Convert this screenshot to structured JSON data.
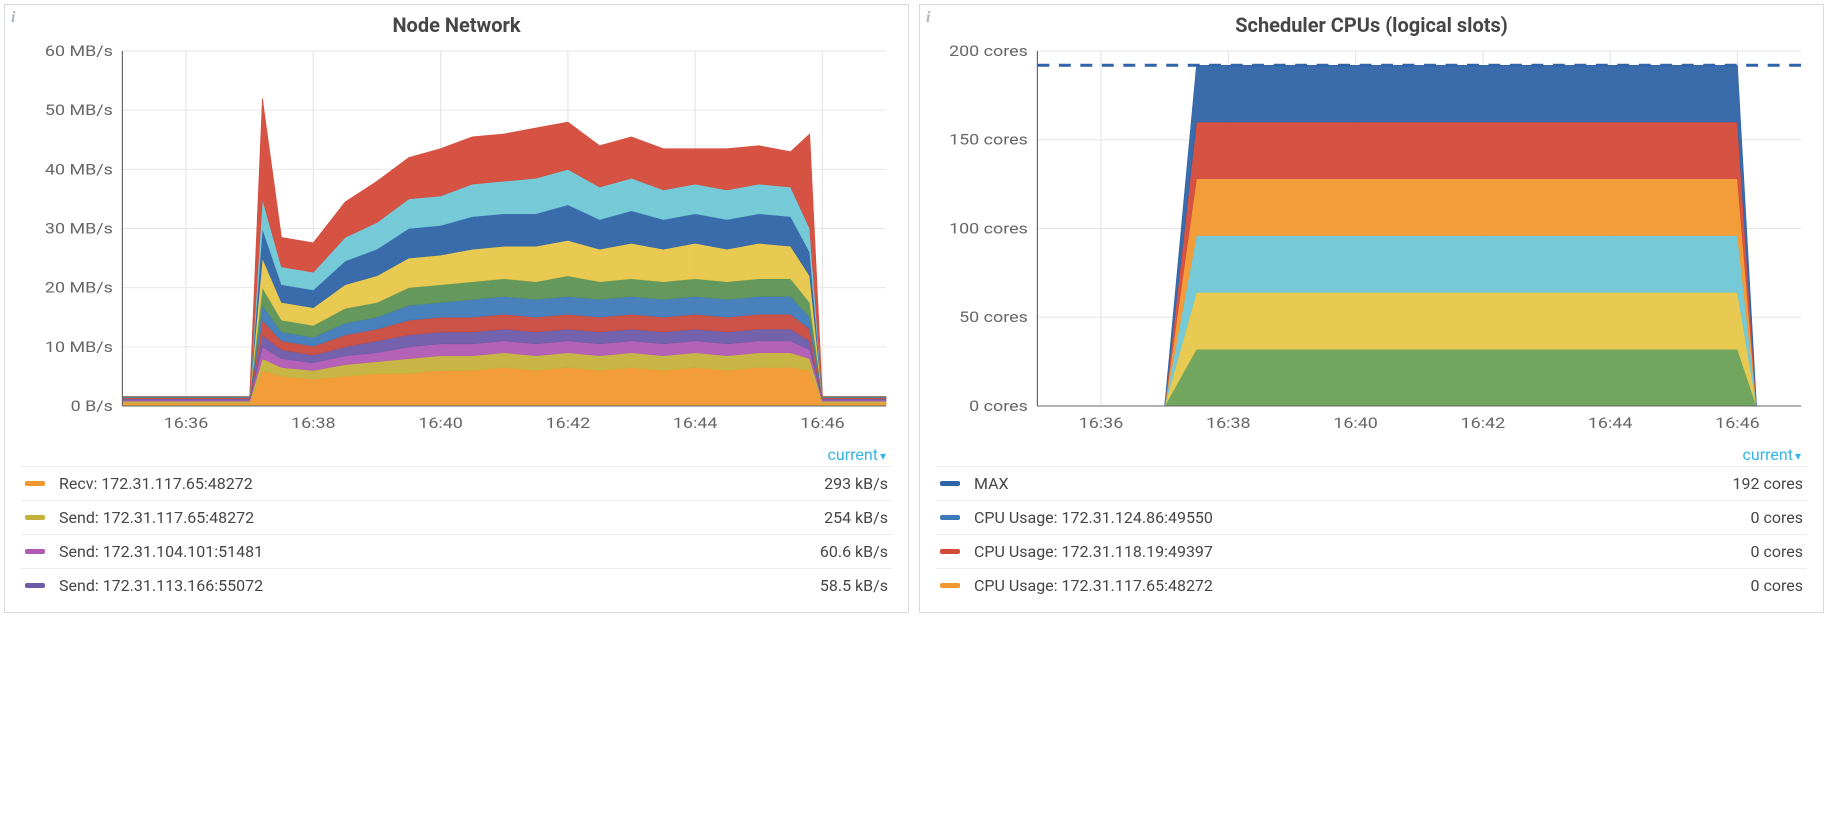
{
  "panels": [
    {
      "id": "node-network",
      "title": "Node Network",
      "legend_toggle": "current",
      "chart": {
        "type": "area-stacked",
        "background_color": "#ffffff",
        "grid_color": "#e6e6e6",
        "axis_color": "#666666",
        "label_fontsize": 15,
        "x_ticks": [
          "16:36",
          "16:38",
          "16:40",
          "16:42",
          "16:44",
          "16:46"
        ],
        "x_domain": [
          0,
          12
        ],
        "y_ticks": [
          "0 B/s",
          "10 MB/s",
          "20 MB/s",
          "30 MB/s",
          "40 MB/s",
          "50 MB/s",
          "60 MB/s"
        ],
        "y_domain": [
          0,
          60
        ],
        "x_samples": [
          0,
          1,
          2,
          2.2,
          2.5,
          3,
          3.5,
          4,
          4.5,
          5,
          5.5,
          6,
          6.5,
          7,
          7.5,
          8,
          8.5,
          9,
          9.5,
          10,
          10.5,
          10.8,
          11,
          12
        ],
        "series": [
          {
            "name": "s1",
            "color": "#f2972f",
            "values": [
              0.5,
              0.5,
              0.5,
              6,
              5,
              4.5,
              5,
              5.5,
              5.5,
              6,
              6,
              6.5,
              6,
              6.5,
              6,
              6.5,
              6,
              6.5,
              6,
              6.5,
              6.5,
              6,
              0.5,
              0.5
            ]
          },
          {
            "name": "s2",
            "color": "#c4b13b",
            "values": [
              0.3,
              0.3,
              0.3,
              2,
              1.5,
              1.5,
              2,
              2,
              2.5,
              2.5,
              2.5,
              2.5,
              2.5,
              2.5,
              2.5,
              2.5,
              2.5,
              2.5,
              2.5,
              2.5,
              2.5,
              2,
              0.3,
              0.3
            ]
          },
          {
            "name": "s3",
            "color": "#af5ab3",
            "values": [
              0.2,
              0.2,
              0.2,
              2,
              1.5,
              1.3,
              1.5,
              1.5,
              2,
              2,
              2,
              2,
              2,
              2,
              2,
              2,
              2,
              2,
              2,
              2,
              2,
              1.5,
              0.2,
              0.2
            ]
          },
          {
            "name": "s4",
            "color": "#6d5aa8",
            "values": [
              0.2,
              0.2,
              0.2,
              2,
              1.5,
              1.3,
              1.5,
              2,
              2,
              2,
              2,
              2,
              2,
              2,
              2,
              2,
              2,
              2,
              2,
              2,
              2,
              1.5,
              0.2,
              0.2
            ]
          },
          {
            "name": "s5",
            "color": "#c94a3e",
            "values": [
              0.2,
              0.2,
              0.2,
              2.5,
              1.5,
              1.5,
              2,
              2,
              2.5,
              2.5,
              2.5,
              2.5,
              2.5,
              2.5,
              2.5,
              2.5,
              2.5,
              2.5,
              2.5,
              2.5,
              2.5,
              2,
              0.2,
              0.2
            ]
          },
          {
            "name": "s6",
            "color": "#3f7ab8",
            "values": [
              0.1,
              0.1,
              0.1,
              2.5,
              1.5,
              1.5,
              2,
              2,
              2.5,
              2.5,
              3,
              3,
              3,
              3,
              3,
              3,
              3,
              3,
              3,
              3,
              3,
              2,
              0.1,
              0.1
            ]
          },
          {
            "name": "s7",
            "color": "#5c9253",
            "values": [
              0.1,
              0.1,
              0.1,
              3,
              2,
              2,
              2.5,
              2.5,
              3,
              3,
              3,
              3,
              3,
              3.5,
              3,
              3,
              3,
              3,
              3,
              3,
              3,
              2.5,
              0.1,
              0.1
            ]
          },
          {
            "name": "s8",
            "color": "#e7c648",
            "values": [
              0,
              0,
              0,
              5,
              3,
              3,
              4,
              4.5,
              5,
              5,
              5.5,
              5.5,
              6,
              6,
              5.5,
              6,
              5.5,
              6,
              5.5,
              6,
              5.5,
              4.5,
              0,
              0
            ]
          },
          {
            "name": "s9",
            "color": "#2f64a8",
            "values": [
              0,
              0,
              0,
              5,
              3,
              3,
              4,
              4.5,
              5,
              5,
              5.5,
              5.5,
              5.5,
              6,
              5,
              5.5,
              5,
              5,
              5,
              5,
              5,
              4,
              0,
              0
            ]
          },
          {
            "name": "s10",
            "color": "#6fc7d6",
            "values": [
              0,
              0,
              0,
              5,
              3,
              3,
              4,
              4.5,
              5,
              5,
              5.5,
              5.5,
              6,
              6,
              5.5,
              5.5,
              5,
              5,
              5,
              5,
              5,
              4,
              0,
              0
            ]
          },
          {
            "name": "s11",
            "color": "#d44a3a",
            "values": [
              0,
              0,
              0,
              17,
              5,
              5,
              6,
              7,
              7,
              8,
              8,
              8,
              8.5,
              8,
              7,
              7,
              7,
              6,
              7,
              6.5,
              6,
              16,
              0,
              0
            ]
          }
        ]
      },
      "legend": [
        {
          "swatch": "#f2972f",
          "label": "Recv: 172.31.117.65:48272",
          "value": "293 kB/s"
        },
        {
          "swatch": "#c4b13b",
          "label": "Send: 172.31.117.65:48272",
          "value": "254 kB/s"
        },
        {
          "swatch": "#af5ab3",
          "label": "Send: 172.31.104.101:51481",
          "value": "60.6 kB/s"
        },
        {
          "swatch": "#6d5aa8",
          "label": "Send: 172.31.113.166:55072",
          "value": "58.5 kB/s"
        }
      ]
    },
    {
      "id": "scheduler-cpus",
      "title": "Scheduler CPUs (logical slots)",
      "legend_toggle": "current",
      "chart": {
        "type": "area-stacked",
        "background_color": "#ffffff",
        "grid_color": "#e6e6e6",
        "axis_color": "#666666",
        "label_fontsize": 15,
        "x_ticks": [
          "16:36",
          "16:38",
          "16:40",
          "16:42",
          "16:44",
          "16:46"
        ],
        "x_domain": [
          0,
          12
        ],
        "y_ticks": [
          "0 cores",
          "50 cores",
          "100 cores",
          "150 cores",
          "200 cores"
        ],
        "y_domain": [
          0,
          200
        ],
        "x_samples": [
          0,
          2.0,
          2.5,
          11.0,
          11.3,
          12
        ],
        "series": [
          {
            "name": "c1",
            "color": "#6aa055",
            "values": [
              0,
              0,
              32,
              32,
              0,
              0
            ]
          },
          {
            "name": "c2",
            "color": "#e7c648",
            "values": [
              0,
              0,
              32,
              32,
              0,
              0
            ]
          },
          {
            "name": "c3",
            "color": "#6fc7d6",
            "values": [
              0,
              0,
              32,
              32,
              0,
              0
            ]
          },
          {
            "name": "c4",
            "color": "#f2972f",
            "values": [
              0,
              0,
              32,
              32,
              0,
              0
            ]
          },
          {
            "name": "c5",
            "color": "#d44a3a",
            "values": [
              0,
              0,
              32,
              32,
              0,
              0
            ]
          },
          {
            "name": "c6",
            "color": "#2f64a8",
            "values": [
              0,
              0,
              32,
              32,
              0,
              0
            ]
          }
        ],
        "max_line": {
          "color": "#2f64a8",
          "value": 192,
          "dash": "10,8",
          "width": 3
        }
      },
      "legend": [
        {
          "swatch": "#2f64a8",
          "label": "MAX",
          "value": "192 cores"
        },
        {
          "swatch": "#3f7ab8",
          "label": "CPU Usage: 172.31.124.86:49550",
          "value": "0 cores"
        },
        {
          "swatch": "#d44a3a",
          "label": "CPU Usage: 172.31.118.19:49397",
          "value": "0 cores"
        },
        {
          "swatch": "#f2972f",
          "label": "CPU Usage: 172.31.117.65:48272",
          "value": "0 cores"
        }
      ]
    }
  ]
}
